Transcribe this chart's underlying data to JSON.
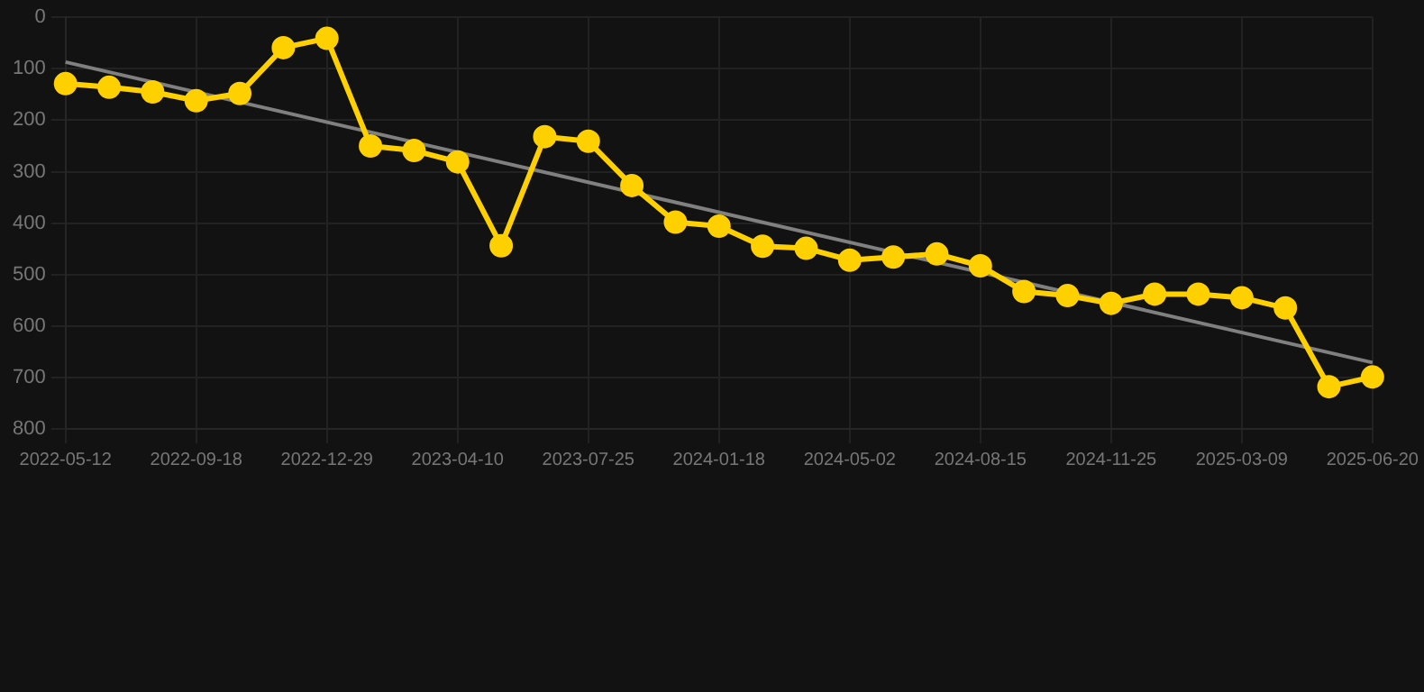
{
  "chart_data": {
    "type": "line",
    "categories": [
      "2022-05-12",
      null,
      null,
      "2022-09-18",
      null,
      null,
      "2022-12-29",
      null,
      null,
      "2023-04-10",
      null,
      null,
      "2023-07-25",
      null,
      null,
      "2024-01-18",
      null,
      null,
      "2024-05-02",
      null,
      null,
      "2024-08-15",
      null,
      null,
      "2024-11-25",
      null,
      null,
      "2025-03-09",
      null,
      null,
      "2025-06-20"
    ],
    "series": [
      {
        "color": "#ffd000",
        "marker": "circle",
        "values": [
          129,
          136,
          145,
          162,
          148,
          59,
          41,
          250,
          259,
          281,
          444,
          232,
          241,
          327,
          398,
          406,
          445,
          449,
          472,
          466,
          460,
          483,
          533,
          541,
          556,
          538,
          538,
          545,
          565,
          718,
          699
        ]
      },
      {
        "color": "#808080",
        "marker": "none",
        "values": [
          87,
          null,
          null,
          null,
          null,
          null,
          null,
          null,
          null,
          null,
          null,
          null,
          null,
          null,
          null,
          null,
          null,
          null,
          null,
          null,
          null,
          null,
          null,
          null,
          null,
          null,
          null,
          null,
          null,
          null,
          671
        ]
      }
    ],
    "ylim": [
      800,
      0
    ],
    "yticks": [
      0,
      100,
      200,
      300,
      400,
      500,
      600,
      700,
      800
    ],
    "grid": true,
    "legend": false
  }
}
